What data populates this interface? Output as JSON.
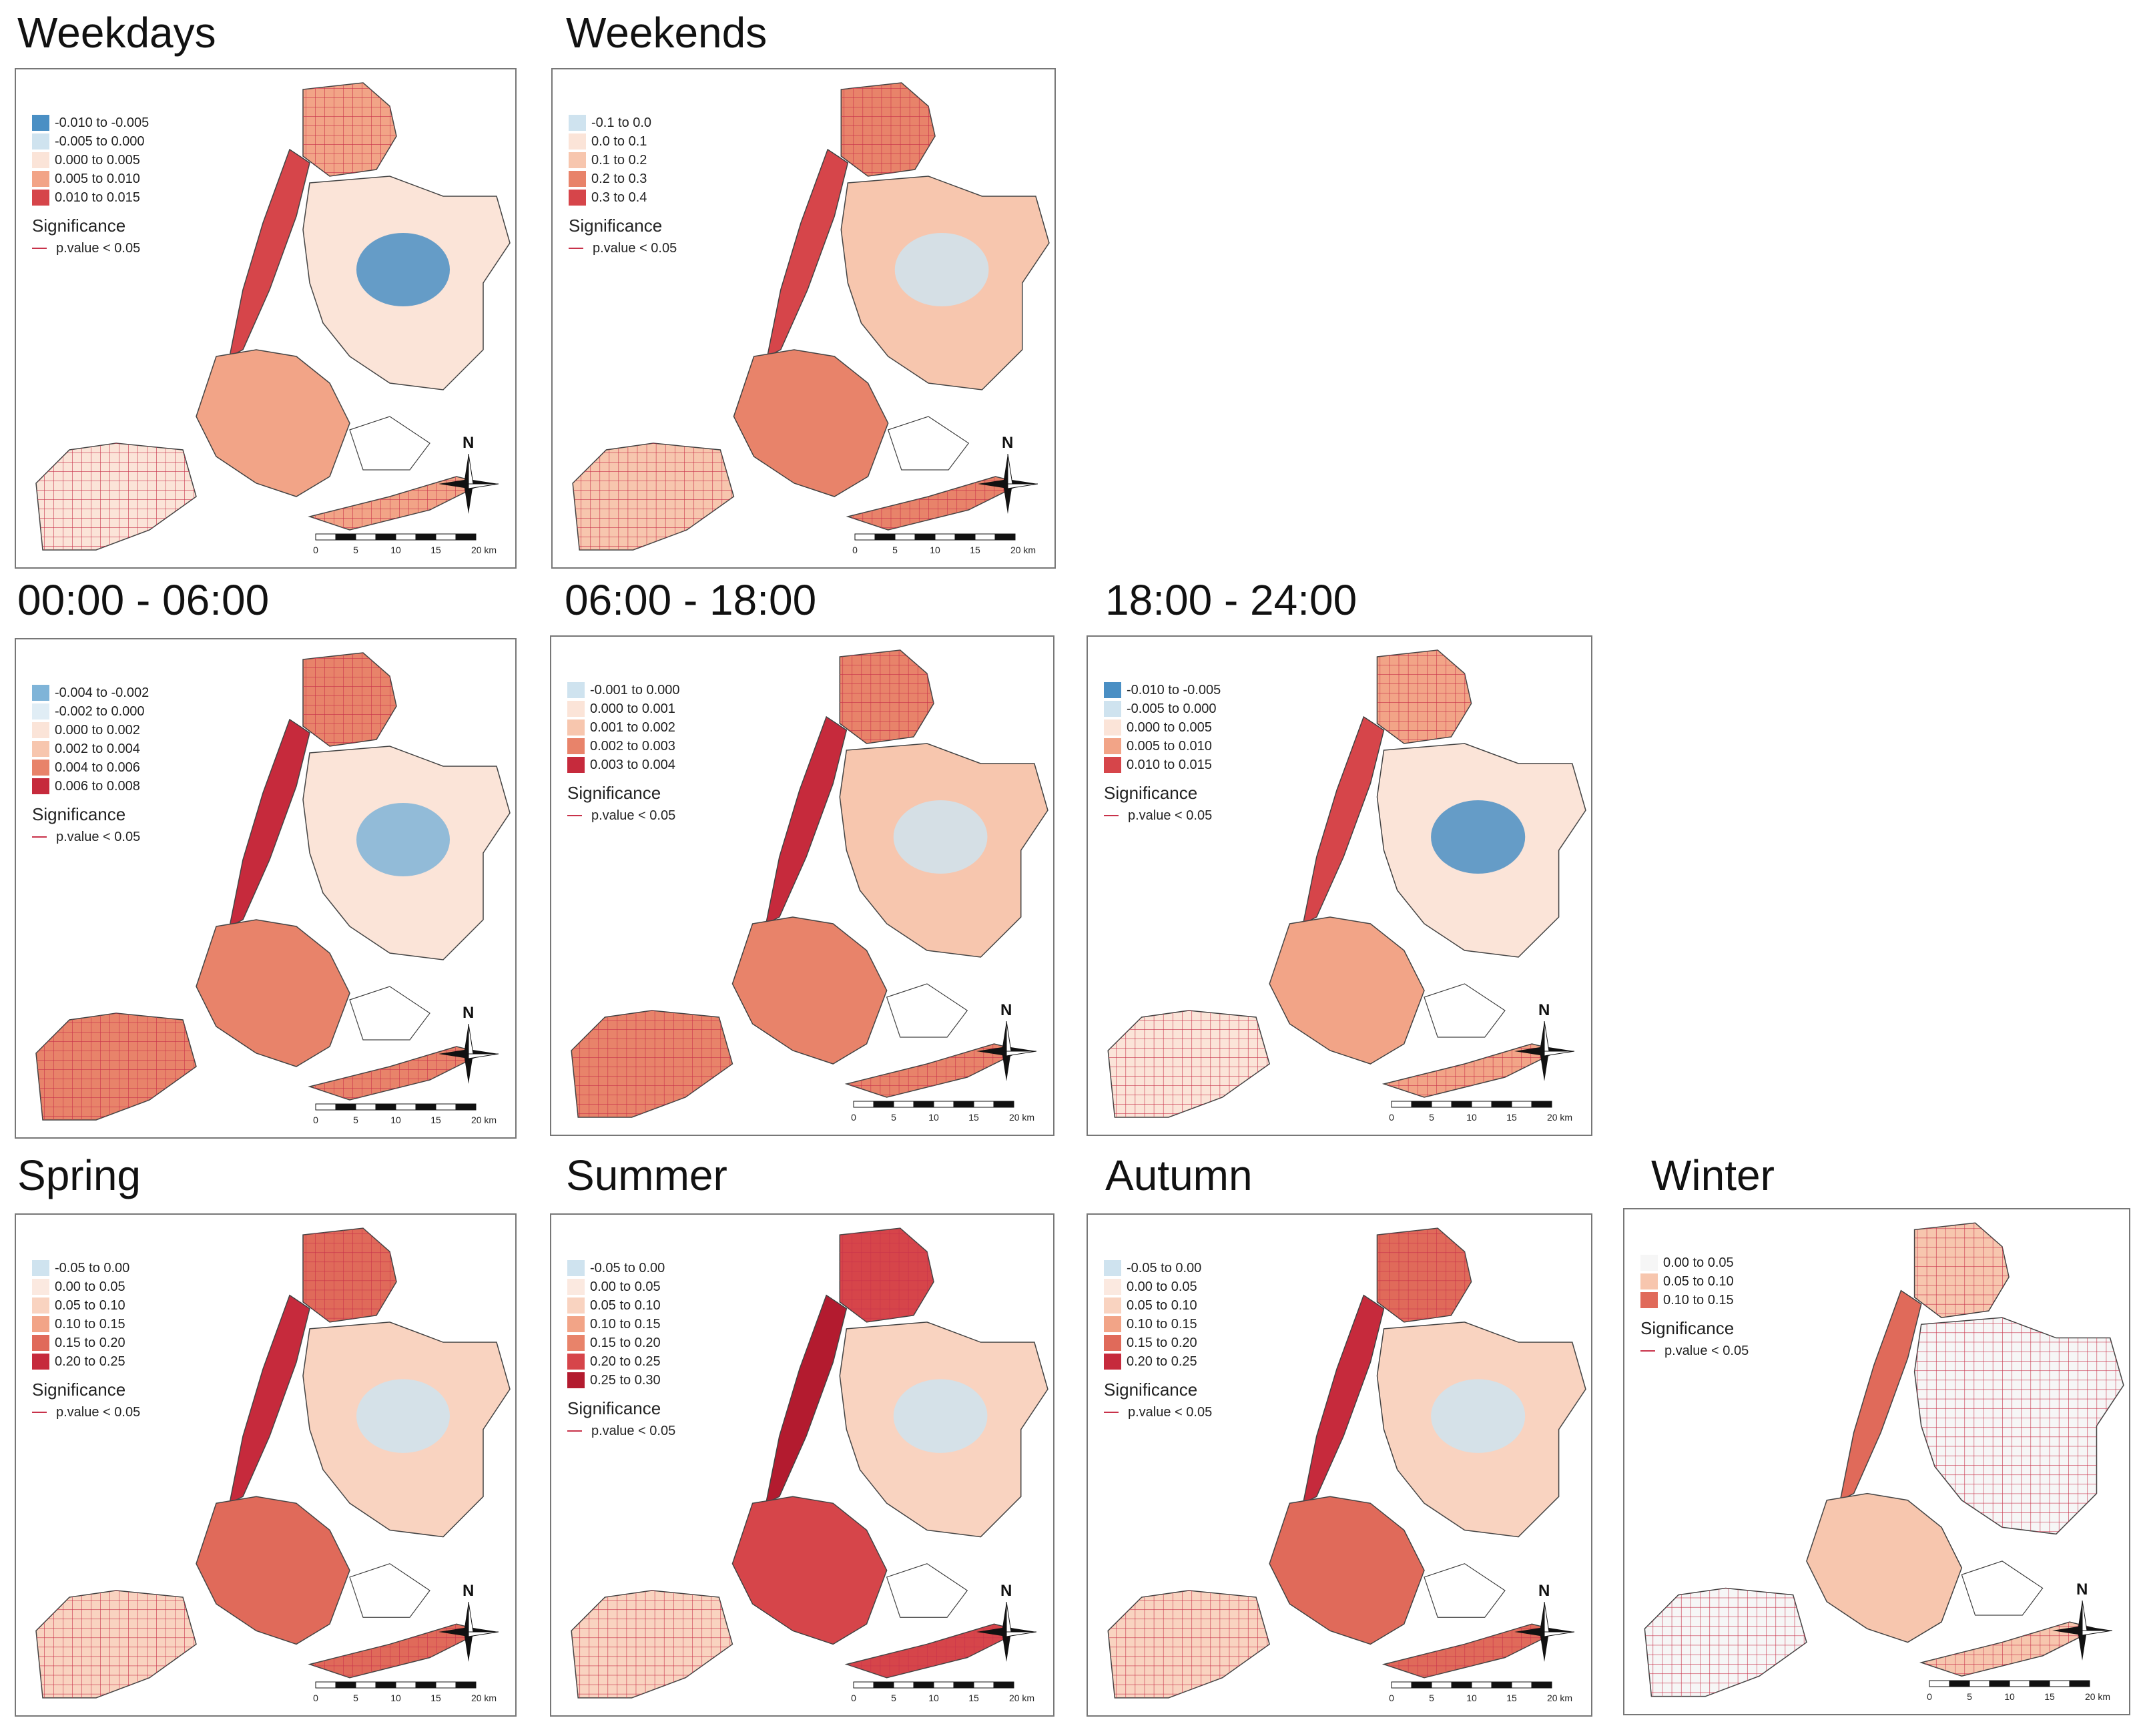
{
  "figure": {
    "significance_title": "Significance",
    "significance_line_label": "p.value < 0.05",
    "scale_labels": [
      "0",
      "5",
      "10",
      "15",
      "20 km"
    ],
    "north_label": "N",
    "colors": {
      "blue_dark": "#4a8fc4",
      "blue_light": "#cfe3ef",
      "near_zero": "#fbe4d8",
      "light_pink": "#f7c6ae",
      "mid_red": "#e8836a",
      "red": "#d6454a",
      "dark_red": "#b31b2f",
      "grid_line": "#c8324a"
    }
  },
  "panels": [
    {
      "id": "weekdays",
      "title": "Weekdays",
      "legend": [
        {
          "label": "-0.010 to -0.005",
          "color": "#4a8fc4"
        },
        {
          "label": "-0.005 to 0.000",
          "color": "#cfe3ef"
        },
        {
          "label": "0.000 to 0.005",
          "color": "#fbe4d8"
        },
        {
          "label": "0.005 to 0.010",
          "color": "#f2a487"
        },
        {
          "label": "0.010 to 0.015",
          "color": "#d6454a"
        }
      ]
    },
    {
      "id": "weekends",
      "title": "Weekends",
      "legend": [
        {
          "label": "-0.1 to 0.0",
          "color": "#cfe3ef"
        },
        {
          "label": "0.0 to 0.1",
          "color": "#fbe4d8"
        },
        {
          "label": "0.1 to 0.2",
          "color": "#f7c6ae"
        },
        {
          "label": "0.2 to 0.3",
          "color": "#e8836a"
        },
        {
          "label": "0.3 to 0.4",
          "color": "#d6454a"
        }
      ]
    },
    {
      "id": "t0006",
      "title": "00:00 - 06:00",
      "legend": [
        {
          "label": "-0.004 to -0.002",
          "color": "#7fb4d8"
        },
        {
          "label": "-0.002 to 0.000",
          "color": "#e0edf5"
        },
        {
          "label": "0.000 to 0.002",
          "color": "#fbe4d8"
        },
        {
          "label": "0.002 to 0.004",
          "color": "#f7c6ae"
        },
        {
          "label": "0.004 to 0.006",
          "color": "#e8836a"
        },
        {
          "label": "0.006 to 0.008",
          "color": "#c62a3c"
        }
      ]
    },
    {
      "id": "t0618",
      "title": "06:00 - 18:00",
      "legend": [
        {
          "label": "-0.001 to 0.000",
          "color": "#cfe3ef"
        },
        {
          "label": "0.000 to 0.001",
          "color": "#fbe4d8"
        },
        {
          "label": "0.001 to 0.002",
          "color": "#f7c6ae"
        },
        {
          "label": "0.002 to 0.003",
          "color": "#e8836a"
        },
        {
          "label": "0.003 to 0.004",
          "color": "#c62a3c"
        }
      ]
    },
    {
      "id": "t1824",
      "title": "18:00 - 24:00",
      "legend": [
        {
          "label": "-0.010 to -0.005",
          "color": "#4a8fc4"
        },
        {
          "label": "-0.005 to 0.000",
          "color": "#cfe3ef"
        },
        {
          "label": "0.000 to 0.005",
          "color": "#fbe4d8"
        },
        {
          "label": "0.005 to 0.010",
          "color": "#f2a487"
        },
        {
          "label": "0.010 to 0.015",
          "color": "#d6454a"
        }
      ]
    },
    {
      "id": "spring",
      "title": "Spring",
      "legend": [
        {
          "label": "-0.05 to 0.00",
          "color": "#cfe3ef"
        },
        {
          "label": "0.00 to 0.05",
          "color": "#fbe9e0"
        },
        {
          "label": "0.05 to 0.10",
          "color": "#f9d3c0"
        },
        {
          "label": "0.10 to 0.15",
          "color": "#f2a487"
        },
        {
          "label": "0.15 to 0.20",
          "color": "#e06a5a"
        },
        {
          "label": "0.20 to 0.25",
          "color": "#c62a3c"
        }
      ]
    },
    {
      "id": "summer",
      "title": "Summer",
      "legend": [
        {
          "label": "-0.05 to 0.00",
          "color": "#cfe3ef"
        },
        {
          "label": "0.00 to 0.05",
          "color": "#fbe9e0"
        },
        {
          "label": "0.05 to 0.10",
          "color": "#f9d3c0"
        },
        {
          "label": "0.10 to 0.15",
          "color": "#f2a487"
        },
        {
          "label": "0.15 to 0.20",
          "color": "#e8836a"
        },
        {
          "label": "0.20 to 0.25",
          "color": "#d6454a"
        },
        {
          "label": "0.25 to 0.30",
          "color": "#b31b2f"
        }
      ]
    },
    {
      "id": "autumn",
      "title": "Autumn",
      "legend": [
        {
          "label": "-0.05 to 0.00",
          "color": "#cfe3ef"
        },
        {
          "label": "0.00 to 0.05",
          "color": "#fbe9e0"
        },
        {
          "label": "0.05 to 0.10",
          "color": "#f9d3c0"
        },
        {
          "label": "0.10 to 0.15",
          "color": "#f2a487"
        },
        {
          "label": "0.15 to 0.20",
          "color": "#e06a5a"
        },
        {
          "label": "0.20 to 0.25",
          "color": "#c62a3c"
        }
      ]
    },
    {
      "id": "winter",
      "title": "Winter",
      "legend": [
        {
          "label": "0.00 to 0.05",
          "color": "#f6f6f6"
        },
        {
          "label": "0.05 to 0.10",
          "color": "#f7c6ae"
        },
        {
          "label": "0.10 to 0.15",
          "color": "#e06a5a"
        }
      ]
    }
  ]
}
